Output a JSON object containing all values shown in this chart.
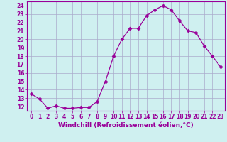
{
  "x": [
    0,
    1,
    2,
    3,
    4,
    5,
    6,
    7,
    8,
    9,
    10,
    11,
    12,
    13,
    14,
    15,
    16,
    17,
    18,
    19,
    20,
    21,
    22,
    23
  ],
  "y": [
    13.5,
    12.9,
    11.8,
    12.1,
    11.8,
    11.8,
    11.9,
    11.9,
    12.6,
    15.0,
    18.0,
    20.0,
    21.3,
    21.3,
    22.8,
    23.5,
    24.0,
    23.5,
    22.2,
    21.0,
    20.8,
    19.2,
    18.0,
    16.7
  ],
  "line_color": "#990099",
  "marker": "D",
  "marker_size": 2.5,
  "bg_color": "#cff0f0",
  "grid_color": "#aaaacc",
  "xlabel": "Windchill (Refroidissement éolien,°C)",
  "xlim": [
    -0.5,
    23.5
  ],
  "ylim": [
    11.5,
    24.5
  ],
  "yticks": [
    12,
    13,
    14,
    15,
    16,
    17,
    18,
    19,
    20,
    21,
    22,
    23,
    24
  ],
  "xticks": [
    0,
    1,
    2,
    3,
    4,
    5,
    6,
    7,
    8,
    9,
    10,
    11,
    12,
    13,
    14,
    15,
    16,
    17,
    18,
    19,
    20,
    21,
    22,
    23
  ],
  "label_fontsize": 6.5,
  "tick_fontsize": 5.5
}
